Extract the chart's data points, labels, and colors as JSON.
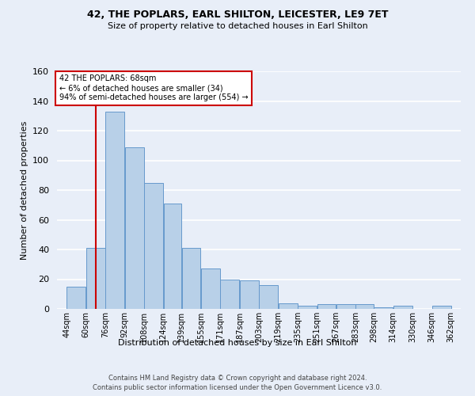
{
  "title1": "42, THE POPLARS, EARL SHILTON, LEICESTER, LE9 7ET",
  "title2": "Size of property relative to detached houses in Earl Shilton",
  "xlabel": "Distribution of detached houses by size in Earl Shilton",
  "ylabel": "Number of detached properties",
  "bar_color": "#b8d0e8",
  "bar_edge_color": "#6699cc",
  "background_color": "#e8eef8",
  "fig_background_color": "#e8eef8",
  "grid_color": "#ffffff",
  "categories": [
    "44sqm",
    "60sqm",
    "76sqm",
    "92sqm",
    "108sqm",
    "124sqm",
    "139sqm",
    "155sqm",
    "171sqm",
    "187sqm",
    "203sqm",
    "219sqm",
    "235sqm",
    "251sqm",
    "267sqm",
    "283sqm",
    "298sqm",
    "314sqm",
    "330sqm",
    "346sqm",
    "362sqm"
  ],
  "values": [
    15,
    41,
    133,
    109,
    85,
    71,
    41,
    27,
    20,
    19,
    16,
    4,
    2,
    3,
    3,
    3,
    1,
    2,
    0,
    2
  ],
  "ylim": [
    0,
    160
  ],
  "yticks": [
    0,
    20,
    40,
    60,
    80,
    100,
    120,
    140,
    160
  ],
  "bin_edges": [
    44,
    60,
    76,
    92,
    108,
    124,
    139,
    155,
    171,
    187,
    203,
    219,
    235,
    251,
    267,
    283,
    298,
    314,
    330,
    346,
    362
  ],
  "vline_x": 68,
  "annotation_text": "42 THE POPLARS: 68sqm\n← 6% of detached houses are smaller (34)\n94% of semi-detached houses are larger (554) →",
  "annotation_box_color": "#ffffff",
  "annotation_border_color": "#cc0000",
  "vline_color": "#cc0000",
  "footer1": "Contains HM Land Registry data © Crown copyright and database right 2024.",
  "footer2": "Contains public sector information licensed under the Open Government Licence v3.0.",
  "title1_fontsize": 9,
  "title2_fontsize": 8,
  "ylabel_fontsize": 8,
  "xlabel_fontsize": 8,
  "ytick_fontsize": 8,
  "xtick_fontsize": 7,
  "footer_fontsize": 6,
  "annotation_fontsize": 7
}
